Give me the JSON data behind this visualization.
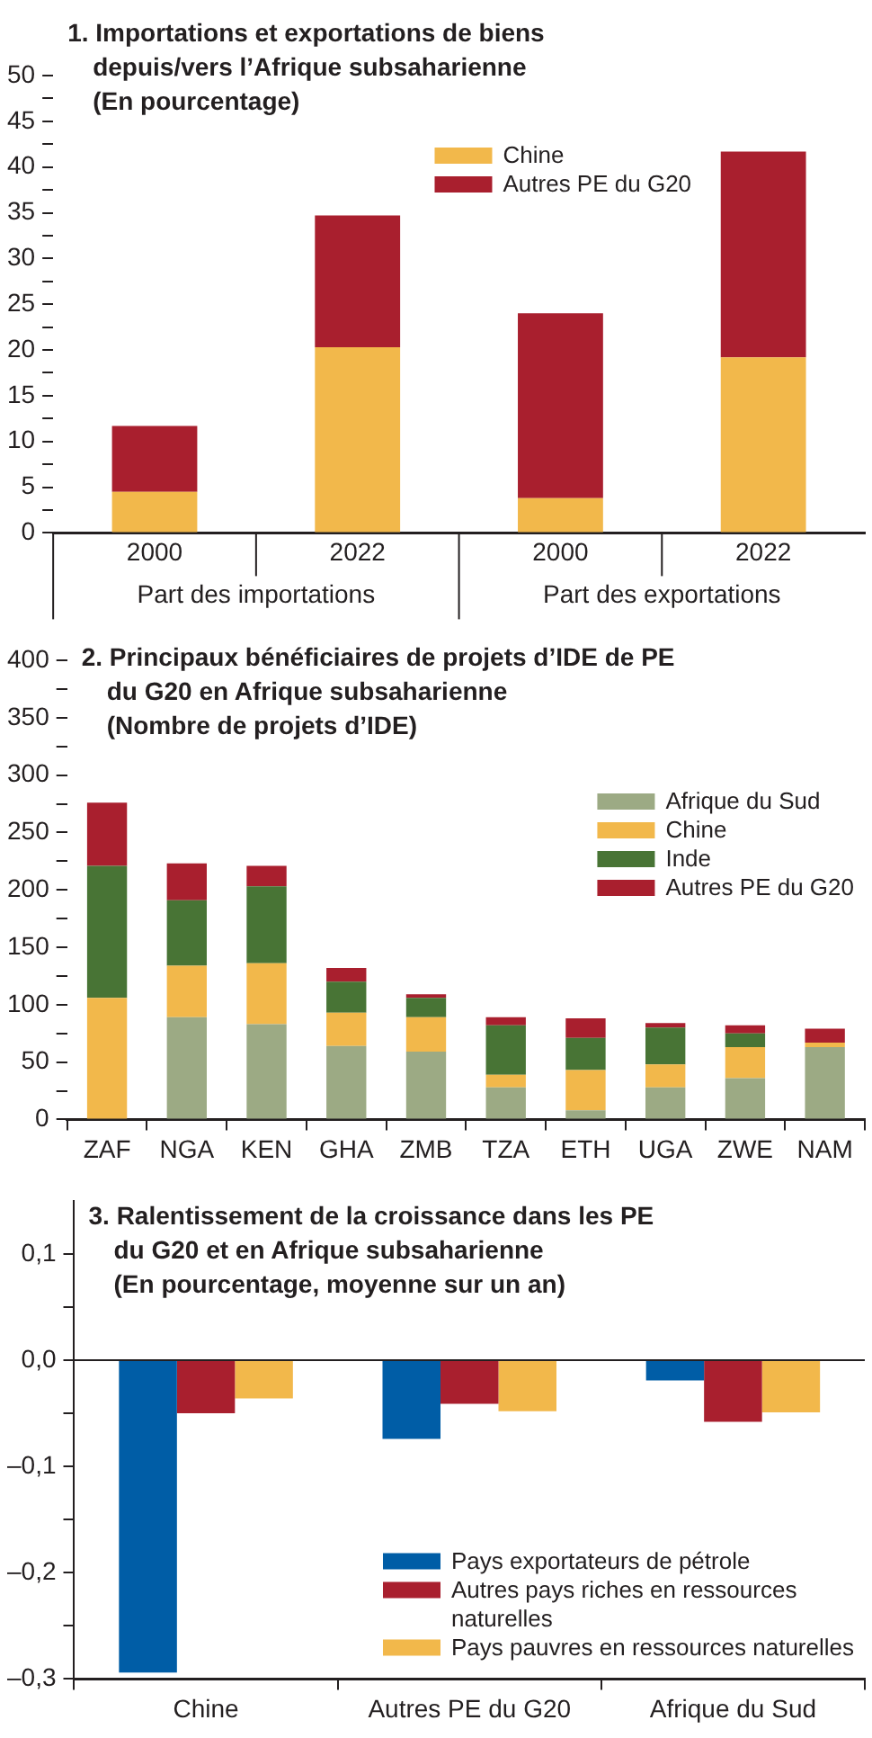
{
  "chart_data": [
    {
      "type": "bar",
      "title": "1. Importations et exportations de biens depuis/vers l’Afrique subsaharienne",
      "subtitle": "(En pourcentage)",
      "categories": [
        "2000",
        "2022",
        "2000",
        "2022"
      ],
      "stacked": true,
      "legend": "top",
      "series": [
        {
          "name": "Chine",
          "color": "#f2b84b",
          "values": [
            4.5,
            20.3,
            3.8,
            19.2
          ]
        },
        {
          "name": "Autres PE du G20",
          "color": "#a91f2e",
          "values": [
            7.2,
            14.4,
            20.2,
            22.5
          ]
        }
      ],
      "ylim": [
        0,
        50
      ],
      "yticks": [
        0,
        {
          "value": 2.5,
          "label": null
        },
        5,
        {
          "value": 7.5,
          "label": null
        },
        10,
        {
          "value": 12.5,
          "label": null
        },
        15,
        {
          "value": 17.5,
          "label": null
        },
        20,
        {
          "value": 22.5,
          "label": null
        },
        25,
        {
          "value": 27.5,
          "label": null
        },
        30,
        {
          "value": 32.5,
          "label": null
        },
        35,
        {
          "value": 37.5,
          "label": null
        },
        40,
        {
          "value": 42.5,
          "label": null
        },
        45,
        {
          "value": 47.5,
          "label": null
        },
        50
      ],
      "annotations": [
        "Part des importations",
        "Part des exportations"
      ]
    },
    {
      "type": "bar",
      "title": "2. Principaux bénéficiaires de projets d’IDE de PE du G20 en Afrique subsaharienne",
      "subtitle": "(Nombre de projets d’IDE)",
      "categories": [
        "ZAF",
        "NGA",
        "KEN",
        "GHA",
        "ZMB",
        "TZA",
        "ETH",
        "UGA",
        "ZWE",
        "NAM"
      ],
      "stacked": true,
      "legend": "top right",
      "series": [
        {
          "name": "Afrique du Sud",
          "color": "#9caa84",
          "values": [
            0,
            89,
            83,
            64,
            59,
            28,
            8,
            28,
            36,
            63
          ]
        },
        {
          "name": "Chine",
          "color": "#f2b84b",
          "values": [
            106,
            45,
            53,
            29,
            30,
            11,
            35,
            20,
            27,
            4
          ]
        },
        {
          "name": "Inde",
          "color": "#487435",
          "values": [
            115,
            57,
            67,
            27,
            17,
            43,
            28,
            32,
            12,
            0
          ]
        },
        {
          "name": "Autres PE du G20",
          "color": "#a91f2e",
          "values": [
            55,
            32,
            18,
            12,
            3,
            7,
            17,
            4,
            7,
            12
          ]
        }
      ],
      "ylim": [
        0,
        400
      ],
      "yticks": [
        0,
        {
          "value": 25,
          "label": null
        },
        50,
        {
          "value": 75,
          "label": null
        },
        100,
        {
          "value": 125,
          "label": null
        },
        150,
        {
          "value": 175,
          "label": null
        },
        200,
        {
          "value": 225,
          "label": null
        },
        250,
        {
          "value": 275,
          "label": null
        },
        300,
        {
          "value": 325,
          "label": null
        },
        350,
        {
          "value": 375,
          "label": null
        },
        400
      ]
    },
    {
      "type": "bar",
      "title": "3. Ralentissement de la croissance dans les PE du G20 et en Afrique subsaharienne",
      "subtitle": "(En pourcentage, moyenne sur un an)",
      "categories": [
        "Chine",
        "Autres PE du G20",
        "Afrique du Sud"
      ],
      "legend": "bottom right",
      "series": [
        {
          "name": "Pays exportateurs de pétrole",
          "color": "#005da6",
          "values": [
            -0.294,
            -0.074,
            -0.019
          ]
        },
        {
          "name": "Autres pays riches en ressources naturelles",
          "color": "#a91f2e",
          "values": [
            -0.05,
            -0.041,
            -0.058
          ]
        },
        {
          "name": "Pays pauvres en ressources naturelles",
          "color": "#f2b84b",
          "values": [
            -0.036,
            -0.048,
            -0.049
          ]
        }
      ],
      "ylim": [
        -0.3,
        0.15
      ],
      "yticks": [
        {
          "value": -0.3,
          "label": "–0,3"
        },
        {
          "value": -0.25,
          "label": null
        },
        {
          "value": -0.2,
          "label": "–0,2"
        },
        {
          "value": -0.15,
          "label": null
        },
        {
          "value": -0.1,
          "label": "–0,1"
        },
        {
          "value": -0.05,
          "label": null
        },
        {
          "value": 0,
          "label": "0,0"
        },
        {
          "value": 0.05,
          "label": null
        },
        {
          "value": 0.1,
          "label": "0,1"
        }
      ]
    }
  ]
}
